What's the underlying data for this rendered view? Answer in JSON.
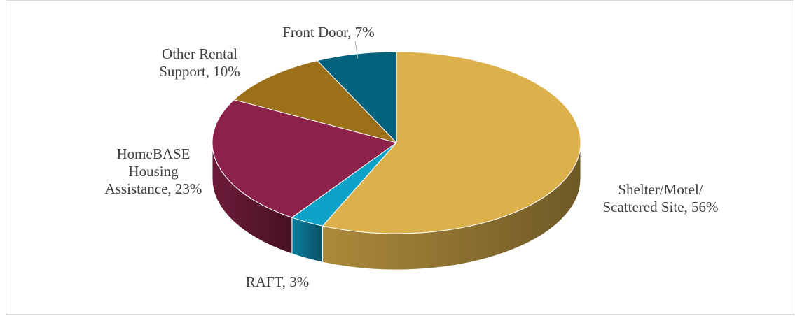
{
  "chart_data": {
    "type": "pie",
    "three_d": true,
    "title": "",
    "legend": "none",
    "slices": [
      {
        "label": "Shelter/Motel/ Scattered Site",
        "value": 56,
        "data_label": [
          "Shelter/Motel/",
          "Scattered Site, 56%"
        ],
        "color": "#dcb14c"
      },
      {
        "label": "RAFT",
        "value": 3,
        "data_label": [
          "RAFT, 3%"
        ],
        "color": "#0fa2c9"
      },
      {
        "label": "HomeBASE Housing Assistance",
        "value": 23,
        "data_label": [
          "HomeBASE",
          "Housing",
          "Assistance, 23%"
        ],
        "color": "#8c2249"
      },
      {
        "label": "Other Rental Support",
        "value": 10,
        "data_label": [
          "Other Rental",
          "Support, 10%"
        ],
        "color": "#9c7018"
      },
      {
        "label": "Front Door",
        "value": 7,
        "data_label": [
          "Front Door, 7%"
        ],
        "color": "#04627d"
      }
    ]
  }
}
